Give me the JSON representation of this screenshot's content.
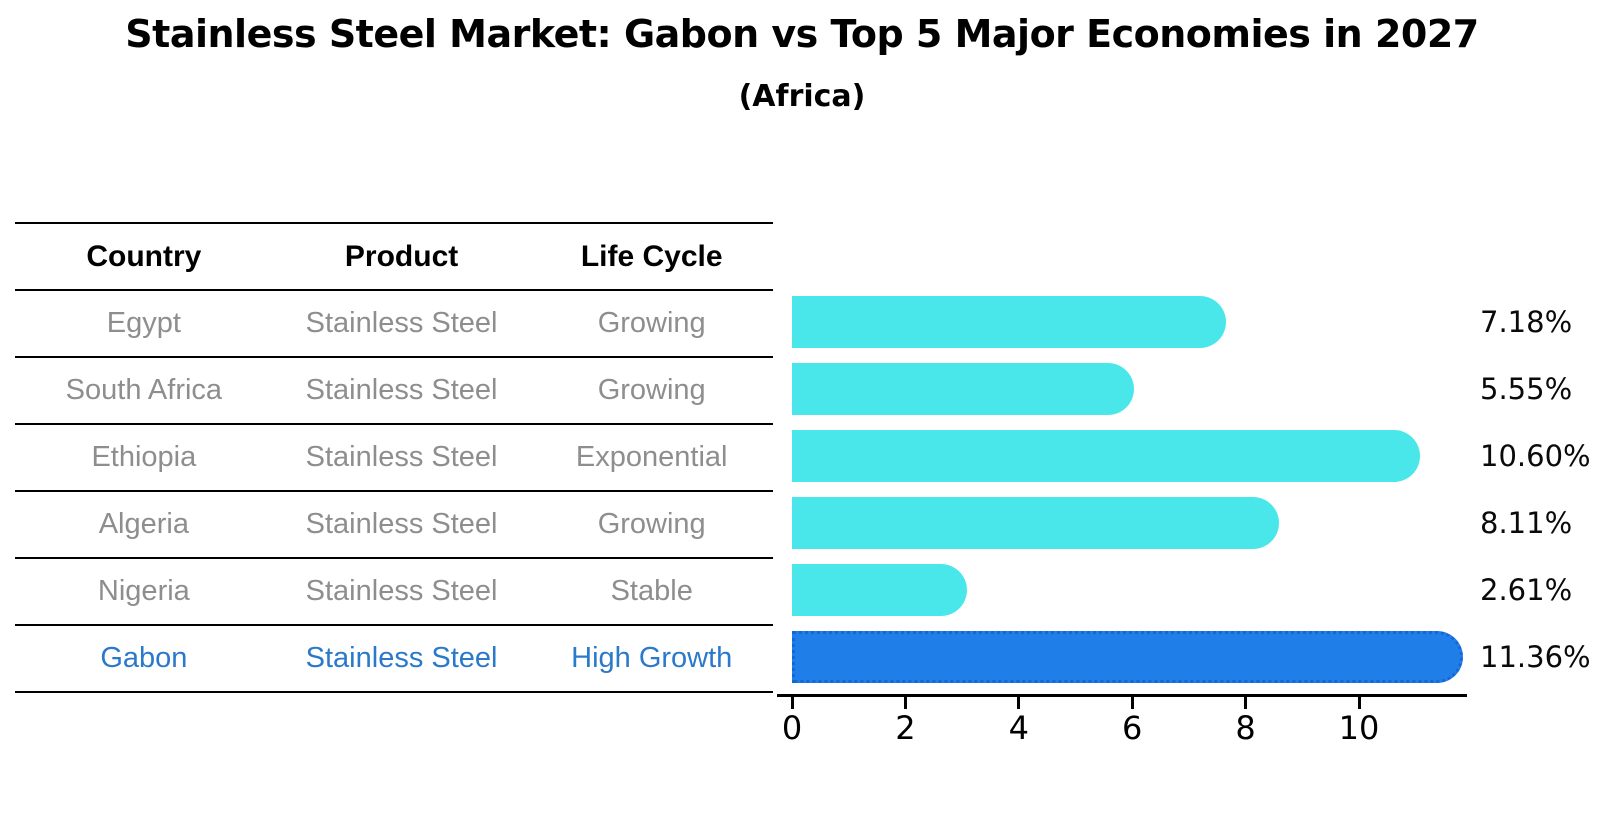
{
  "title": "Stainless Steel Market: Gabon vs Top 5 Major Economies in 2027",
  "subtitle": "(Africa)",
  "colors": {
    "bar": "#4AE7EA",
    "bar-hl": "#1F7EE8",
    "bar-hl-border": "#1467D8",
    "row-text": "#8E8E8E",
    "hl-text": "#2A79CA",
    "ink": "#000000"
  },
  "table": {
    "headers": [
      "Country",
      "Product",
      "Life Cycle"
    ],
    "rows": [
      {
        "country": "Egypt",
        "product": "Stainless Steel",
        "life_cycle": "Growing",
        "highlight": false
      },
      {
        "country": "South Africa",
        "product": "Stainless Steel",
        "life_cycle": "Growing",
        "highlight": false
      },
      {
        "country": "Ethiopia",
        "product": "Stainless Steel",
        "life_cycle": "Exponential",
        "highlight": false
      },
      {
        "country": "Algeria",
        "product": "Stainless Steel",
        "life_cycle": "Growing",
        "highlight": false
      },
      {
        "country": "Nigeria",
        "product": "Stainless Steel",
        "life_cycle": "Stable",
        "highlight": false
      },
      {
        "country": "Gabon",
        "product": "Stainless Steel",
        "life_cycle": "High Growth",
        "highlight": true
      }
    ]
  },
  "chart_data": {
    "type": "bar",
    "orientation": "horizontal",
    "title": "Stainless Steel Market: Gabon vs Top 5 Major Economies in 2027",
    "subtitle": "(Africa)",
    "categories": [
      "Egypt",
      "South Africa",
      "Ethiopia",
      "Algeria",
      "Nigeria",
      "Gabon"
    ],
    "values": [
      7.18,
      5.55,
      10.6,
      8.11,
      2.61,
      11.36
    ],
    "value_labels": [
      "7.18%",
      "5.55%",
      "10.60%",
      "8.11%",
      "2.61%",
      "11.36%"
    ],
    "highlight_category": "Gabon",
    "xlabel": "",
    "ylabel": "",
    "xticks": [
      0,
      2,
      4,
      6,
      8,
      10
    ],
    "xtick_labels": [
      "0",
      "2",
      "4",
      "6",
      "8",
      "10"
    ],
    "xlim": [
      0,
      11.9
    ],
    "grid": false,
    "legend": false
  }
}
